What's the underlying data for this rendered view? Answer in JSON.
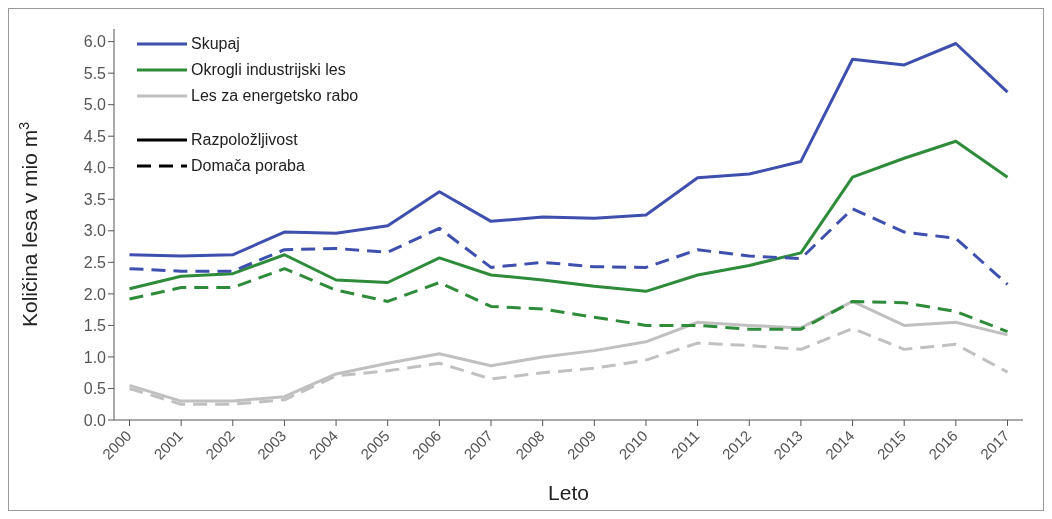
{
  "chart_data": {
    "type": "line",
    "xlabel": "Leto",
    "ylabel": "Količina lesa v mio m$^{3}$",
    "categories": [
      "2000",
      "2001",
      "2002",
      "2003",
      "2004",
      "2005",
      "2006",
      "2007",
      "2008",
      "2009",
      "2010",
      "2011",
      "2012",
      "2013",
      "2014",
      "2015",
      "2016",
      "2017"
    ],
    "series": [
      {
        "name": "Skupaj",
        "color": "#3f4fae",
        "line_style": "solid",
        "values": [
          2.62,
          2.6,
          2.62,
          2.98,
          2.96,
          3.08,
          3.62,
          3.15,
          3.22,
          3.2,
          3.25,
          3.84,
          3.9,
          4.1,
          5.72,
          5.63,
          5.97,
          5.2
        ]
      },
      {
        "name": "Okrogli industrijski les",
        "color": "#2e8b3a",
        "line_style": "solid",
        "values": [
          2.08,
          2.28,
          2.32,
          2.62,
          2.22,
          2.18,
          2.57,
          2.3,
          2.22,
          2.12,
          2.04,
          2.3,
          2.45,
          2.65,
          3.85,
          4.15,
          4.42,
          3.85
        ]
      },
      {
        "name": "Les za energetsko rabo",
        "color": "#c0c0c0",
        "line_style": "solid",
        "values": [
          0.55,
          0.3,
          0.3,
          0.37,
          0.73,
          0.9,
          1.05,
          0.86,
          1.0,
          1.1,
          1.24,
          1.55,
          1.5,
          1.46,
          1.88,
          1.5,
          1.55,
          1.35
        ]
      },
      {
        "color": "#3f4fae",
        "line_style": "dashed",
        "values": [
          2.4,
          2.36,
          2.36,
          2.7,
          2.72,
          2.66,
          3.04,
          2.42,
          2.5,
          2.43,
          2.42,
          2.7,
          2.6,
          2.56,
          3.35,
          2.98,
          2.88,
          2.15
        ]
      },
      {
        "color": "#2e8b3a",
        "line_style": "dashed",
        "values": [
          1.92,
          2.1,
          2.1,
          2.4,
          2.06,
          1.88,
          2.18,
          1.8,
          1.76,
          1.63,
          1.5,
          1.5,
          1.44,
          1.44,
          1.88,
          1.86,
          1.72,
          1.4
        ]
      },
      {
        "color": "#c0c0c0",
        "line_style": "dashed",
        "values": [
          0.5,
          0.25,
          0.25,
          0.32,
          0.7,
          0.78,
          0.9,
          0.65,
          0.75,
          0.82,
          0.95,
          1.22,
          1.18,
          1.12,
          1.45,
          1.12,
          1.2,
          0.76
        ]
      }
    ],
    "annotations": [
      "Razpoložljivost",
      "Domača poraba"
    ],
    "ylim": [
      0,
      6.2
    ],
    "yticks": [
      {
        "value": 0,
        "label": "0.0"
      },
      0.5,
      {
        "value": 1,
        "label": "1.0"
      },
      1.5,
      {
        "value": 2,
        "label": "2.0"
      },
      2.5,
      {
        "value": 3,
        "label": "3.0"
      },
      3.5,
      {
        "value": 4,
        "label": "4.0"
      },
      4.5,
      {
        "value": 5,
        "label": "5.0"
      },
      5.5,
      {
        "value": 6,
        "label": "6.0"
      }
    ],
    "grid": false,
    "legend": "top left",
    "marker": "none"
  }
}
